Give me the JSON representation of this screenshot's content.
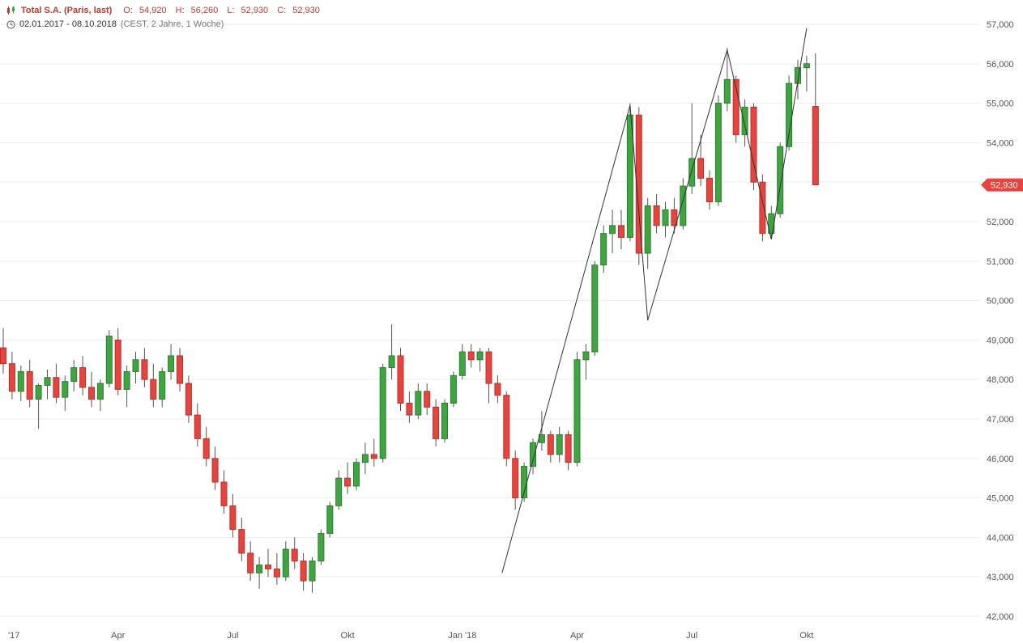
{
  "header": {
    "instrument": "Total S.A. (Paris, last)",
    "ohlc": {
      "o_label": "O:",
      "o": "54,920",
      "h_label": "H:",
      "h": "56,260",
      "l_label": "L:",
      "l": "52,930",
      "c_label": "C:",
      "c": "52,930"
    },
    "period": "02.01.2017 - 08.10.2018",
    "period_detail": "(CEST, 2 Jahre, 1 Woche)"
  },
  "price_tag": {
    "label": "52,930"
  },
  "colors": {
    "up": "#3fa63f",
    "up_border": "#2e7d32",
    "down": "#e8433c",
    "down_border": "#b3342c",
    "wick": "#555555",
    "grid": "#ececec",
    "axis_text": "#555555",
    "trendline": "#333333",
    "legend_red": "#bb3b33",
    "tag_bg": "#e8433c",
    "tag_text": "#ffffff"
  },
  "chart_data": {
    "type": "candlestick",
    "instrument": "Total S.A. (Paris)",
    "interval": "1 Woche",
    "date_range": "02.01.2017 - 08.10.2018",
    "last_price": 52930,
    "y_range": [
      42000,
      57000
    ],
    "grid": "horizontal",
    "y_ticks": [
      {
        "v": 42000,
        "label": "42,000"
      },
      {
        "v": 43000,
        "label": "43,000"
      },
      {
        "v": 44000,
        "label": "44,000"
      },
      {
        "v": 45000,
        "label": "45,000"
      },
      {
        "v": 46000,
        "label": "46,000"
      },
      {
        "v": 47000,
        "label": "47,000"
      },
      {
        "v": 48000,
        "label": "48,000"
      },
      {
        "v": 49000,
        "label": "49,000"
      },
      {
        "v": 50000,
        "label": "50,000"
      },
      {
        "v": 51000,
        "label": "51,000"
      },
      {
        "v": 52000,
        "label": "52,000"
      },
      {
        "v": 53000,
        "label": "53,000"
      },
      {
        "v": 54000,
        "label": "54,000"
      },
      {
        "v": 55000,
        "label": "55,000"
      },
      {
        "v": 56000,
        "label": "56,000"
      },
      {
        "v": 57000,
        "label": "57,000"
      }
    ],
    "x_ticks": [
      {
        "week": 1,
        "label": "'17"
      },
      {
        "week": 14,
        "label": "Apr"
      },
      {
        "week": 27,
        "label": "Jul"
      },
      {
        "week": 40,
        "label": "Okt"
      },
      {
        "week": 53,
        "label": "Jan '18"
      },
      {
        "week": 66,
        "label": "Apr"
      },
      {
        "week": 79,
        "label": "Jul"
      },
      {
        "week": 92,
        "label": "Okt"
      }
    ],
    "candles": [
      [
        48800,
        49300,
        48150,
        48400
      ],
      [
        48400,
        48700,
        47500,
        47700
      ],
      [
        47700,
        48350,
        47450,
        48200
      ],
      [
        48200,
        48500,
        47300,
        47500
      ],
      [
        47500,
        47900,
        46750,
        47850
      ],
      [
        47850,
        48250,
        47500,
        48050
      ],
      [
        48050,
        48400,
        47400,
        47550
      ],
      [
        47550,
        48100,
        47200,
        47950
      ],
      [
        47950,
        48500,
        47700,
        48300
      ],
      [
        48300,
        48600,
        47600,
        47800
      ],
      [
        47800,
        48200,
        47300,
        47500
      ],
      [
        47500,
        48000,
        47200,
        47900
      ],
      [
        47900,
        49250,
        47800,
        49100
      ],
      [
        49000,
        49300,
        47600,
        47750
      ],
      [
        47750,
        48350,
        47300,
        48200
      ],
      [
        48200,
        48700,
        47900,
        48500
      ],
      [
        48500,
        48800,
        47800,
        48000
      ],
      [
        48000,
        48400,
        47300,
        47500
      ],
      [
        47500,
        48300,
        47300,
        48200
      ],
      [
        48200,
        48900,
        48000,
        48600
      ],
      [
        48600,
        48800,
        47700,
        47900
      ],
      [
        47900,
        48100,
        46900,
        47100
      ],
      [
        47100,
        47400,
        46300,
        46500
      ],
      [
        46500,
        46800,
        45800,
        46000
      ],
      [
        46000,
        46300,
        45200,
        45400
      ],
      [
        45400,
        45700,
        44600,
        44800
      ],
      [
        44800,
        45100,
        44000,
        44200
      ],
      [
        44200,
        44500,
        43400,
        43600
      ],
      [
        43600,
        43900,
        42900,
        43100
      ],
      [
        43100,
        43500,
        42700,
        43300
      ],
      [
        43300,
        43700,
        43000,
        43200
      ],
      [
        43200,
        43600,
        42800,
        43000
      ],
      [
        43000,
        43900,
        42900,
        43700
      ],
      [
        43700,
        44000,
        43200,
        43400
      ],
      [
        43400,
        43600,
        42650,
        42900
      ],
      [
        42900,
        43500,
        42600,
        43400
      ],
      [
        43400,
        44200,
        43300,
        44100
      ],
      [
        44100,
        44900,
        44000,
        44800
      ],
      [
        44800,
        45700,
        44700,
        45500
      ],
      [
        45500,
        45900,
        45100,
        45300
      ],
      [
        45300,
        46000,
        45200,
        45900
      ],
      [
        45900,
        46400,
        45600,
        46100
      ],
      [
        46100,
        46500,
        45800,
        46000
      ],
      [
        46000,
        48400,
        45900,
        48300
      ],
      [
        48300,
        49400,
        48000,
        48600
      ],
      [
        48600,
        48800,
        47200,
        47400
      ],
      [
        47400,
        47700,
        46900,
        47100
      ],
      [
        47100,
        47900,
        47000,
        47700
      ],
      [
        47700,
        47900,
        47100,
        47300
      ],
      [
        47300,
        47500,
        46300,
        46500
      ],
      [
        46500,
        47500,
        46400,
        47400
      ],
      [
        47400,
        48200,
        47300,
        48100
      ],
      [
        48100,
        48900,
        48000,
        48700
      ],
      [
        48700,
        48900,
        48300,
        48500
      ],
      [
        48500,
        48800,
        48200,
        48700
      ],
      [
        48700,
        48800,
        47400,
        47900
      ],
      [
        47900,
        48100,
        47400,
        47600
      ],
      [
        47600,
        47700,
        45800,
        46000
      ],
      [
        46000,
        46200,
        44700,
        45000
      ],
      [
        45000,
        45900,
        44900,
        45800
      ],
      [
        45800,
        46500,
        45600,
        46400
      ],
      [
        46400,
        47200,
        46200,
        46600
      ],
      [
        46600,
        46700,
        45900,
        46100
      ],
      [
        46100,
        46800,
        45900,
        46600
      ],
      [
        46600,
        46700,
        45700,
        45900
      ],
      [
        45900,
        48700,
        45800,
        48500
      ],
      [
        48500,
        48900,
        48000,
        48700
      ],
      [
        48700,
        51000,
        48600,
        50900
      ],
      [
        50900,
        51900,
        50700,
        51700
      ],
      [
        51700,
        52300,
        51200,
        51900
      ],
      [
        51900,
        52300,
        51300,
        51600
      ],
      [
        51600,
        55000,
        51500,
        54700
      ],
      [
        54700,
        54900,
        50900,
        51200
      ],
      [
        51200,
        52600,
        50800,
        52400
      ],
      [
        52400,
        52700,
        51700,
        51900
      ],
      [
        51900,
        52500,
        51600,
        52300
      ],
      [
        52300,
        52600,
        51700,
        51900
      ],
      [
        51900,
        53100,
        51800,
        52900
      ],
      [
        52900,
        55000,
        52700,
        53600
      ],
      [
        53600,
        54200,
        52900,
        53100
      ],
      [
        53100,
        53300,
        52300,
        52500
      ],
      [
        52500,
        55200,
        52400,
        55000
      ],
      [
        55000,
        56400,
        54800,
        55600
      ],
      [
        55600,
        55700,
        54000,
        54200
      ],
      [
        54200,
        55100,
        53900,
        54900
      ],
      [
        54900,
        55000,
        52800,
        53000
      ],
      [
        53000,
        53200,
        51500,
        51700
      ],
      [
        51700,
        52400,
        51600,
        52200
      ],
      [
        52200,
        54000,
        52100,
        53900
      ],
      [
        53900,
        55700,
        53800,
        55500
      ],
      [
        55500,
        56100,
        55100,
        55900
      ],
      [
        55900,
        56200,
        55300,
        56000
      ],
      [
        54920,
        56260,
        52930,
        52930
      ]
    ],
    "trendline": [
      [
        57.5,
        43100
      ],
      [
        72,
        54950
      ],
      [
        74,
        49500
      ],
      [
        83,
        56350
      ],
      [
        88,
        51550
      ],
      [
        92,
        56900
      ]
    ]
  }
}
